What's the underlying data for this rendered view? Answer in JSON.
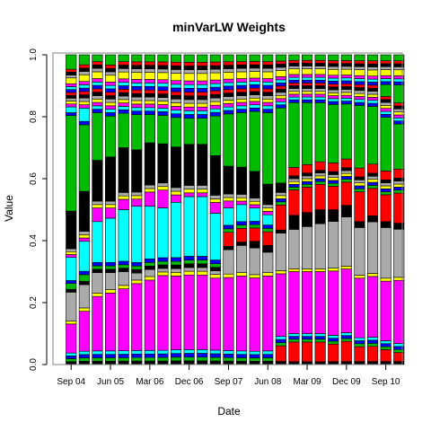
{
  "chart_data": {
    "type": "stacked-bar",
    "title": "minVarLW Weights",
    "xlabel": "Date",
    "ylabel": "Value",
    "ylim": [
      0,
      1
    ],
    "yticks": [
      "0.0",
      "0.2",
      "0.4",
      "0.6",
      "0.8",
      "1.0"
    ],
    "ytick_values": [
      0,
      0.2,
      0.4,
      0.6,
      0.8,
      1.0
    ],
    "xtick_labels": [
      "Sep 04",
      "Jun 05",
      "Mar 06",
      "Dec 06",
      "Sep 07",
      "Jun 08",
      "Mar 09",
      "Dec 09",
      "Sep 10"
    ],
    "xtick_bar_index": [
      0,
      3,
      6,
      9,
      12,
      15,
      18,
      21,
      24
    ],
    "n_bars": 26,
    "colors": [
      "#000000",
      "#ff0000",
      "#00bb00",
      "#0000ff",
      "#00ffff",
      "#ff00ff",
      "#ffff00",
      "#aaaaaa"
    ],
    "color_order": [
      0,
      1,
      2,
      3,
      4,
      5,
      6,
      7,
      0,
      1,
      2,
      3,
      4,
      5,
      6,
      7,
      0,
      1,
      2,
      3,
      4,
      5,
      6,
      7,
      0,
      1,
      2,
      3,
      4,
      5,
      6,
      7,
      0,
      1,
      2
    ],
    "series_values": [
      [
        0.01,
        0.01,
        0.01,
        0.01,
        0.01,
        0.01,
        0.01,
        0.01,
        0.01,
        0.01,
        0.01,
        0.01,
        0.01,
        0.01,
        0.01,
        0.01,
        0.01,
        0.01,
        0.01,
        0.01,
        0.01,
        0.01,
        0.01,
        0.01,
        0.01,
        0.01
      ],
      [
        0,
        0,
        0,
        0,
        0,
        0,
        0,
        0,
        0,
        0,
        0,
        0,
        0,
        0,
        0,
        0,
        0.05,
        0.07,
        0.07,
        0.07,
        0.06,
        0.07,
        0.05,
        0.05,
        0.04,
        0.03
      ],
      [
        0.01,
        0.01,
        0.01,
        0.01,
        0.01,
        0.01,
        0.01,
        0.01,
        0.01,
        0.01,
        0.01,
        0.01,
        0.01,
        0.01,
        0.01,
        0.01,
        0.01,
        0.01,
        0.01,
        0.01,
        0.01,
        0.01,
        0.01,
        0.01,
        0.01,
        0.01
      ],
      [
        0.01,
        0.01,
        0.01,
        0.01,
        0.01,
        0.01,
        0.01,
        0.01,
        0.01,
        0.01,
        0.01,
        0.01,
        0.01,
        0.01,
        0.01,
        0.01,
        0.01,
        0.01,
        0.01,
        0.01,
        0.01,
        0.01,
        0.01,
        0.01,
        0.01,
        0.01
      ],
      [
        0.01,
        0.01,
        0.01,
        0.01,
        0.01,
        0.01,
        0.01,
        0.01,
        0.01,
        0.01,
        0.01,
        0.01,
        0.01,
        0.01,
        0.01,
        0.01,
        0.01,
        0.01,
        0.01,
        0.01,
        0.01,
        0.01,
        0.01,
        0.01,
        0.01,
        0.01
      ],
      [
        0.1,
        0.12,
        0.16,
        0.17,
        0.18,
        0.19,
        0.2,
        0.21,
        0.2,
        0.2,
        0.2,
        0.2,
        0.21,
        0.22,
        0.22,
        0.22,
        0.2,
        0.22,
        0.22,
        0.22,
        0.22,
        0.22,
        0.2,
        0.2,
        0.2,
        0.21
      ],
      [
        0.01,
        0.01,
        0.01,
        0.01,
        0.01,
        0.01,
        0.01,
        0.01,
        0.01,
        0.01,
        0.01,
        0.01,
        0.01,
        0.01,
        0.01,
        0.01,
        0.01,
        0.01,
        0.01,
        0.01,
        0.01,
        0.01,
        0.01,
        0.01,
        0.01,
        0.01
      ],
      [
        0.1,
        0.07,
        0.06,
        0.05,
        0.04,
        0.02,
        0.02,
        0.01,
        0.01,
        0.01,
        0.01,
        0.01,
        0.07,
        0.08,
        0.08,
        0.06,
        0.12,
        0.14,
        0.15,
        0.16,
        0.16,
        0.17,
        0.16,
        0.17,
        0.17,
        0.16
      ],
      [
        0.01,
        0.01,
        0.01,
        0.01,
        0.01,
        0.01,
        0.01,
        0.01,
        0.01,
        0.01,
        0.01,
        0.01,
        0.01,
        0.01,
        0.02,
        0.02,
        0.01,
        0.05,
        0.05,
        0.05,
        0.04,
        0.04,
        0.02,
        0.02,
        0.02,
        0.02
      ],
      [
        0,
        0,
        0,
        0,
        0,
        0,
        0,
        0,
        0,
        0,
        0,
        0,
        0.04,
        0.04,
        0.04,
        0.04,
        0.08,
        0.09,
        0.09,
        0.09,
        0.08,
        0.08,
        0.1,
        0.09,
        0.09,
        0.1
      ],
      [
        0.02,
        0.02,
        0.01,
        0.01,
        0.01,
        0.01,
        0.01,
        0.01,
        0.01,
        0.01,
        0.01,
        0.01,
        0.01,
        0.01,
        0.01,
        0.01,
        0.01,
        0.01,
        0.01,
        0.01,
        0.01,
        0.01,
        0.01,
        0.01,
        0.01,
        0.01
      ],
      [
        0.01,
        0.01,
        0.01,
        0.01,
        0.01,
        0.01,
        0.01,
        0.01,
        0.01,
        0.01,
        0.01,
        0.01,
        0.01,
        0.01,
        0.01,
        0.01,
        0.01,
        0.01,
        0.01,
        0.01,
        0.01,
        0.01,
        0.01,
        0.01,
        0.01,
        0.01
      ],
      [
        0.08,
        0.09,
        0.12,
        0.13,
        0.15,
        0.16,
        0.15,
        0.14,
        0.15,
        0.16,
        0.16,
        0.13,
        0.05,
        0.05,
        0.04,
        0.03,
        0,
        0,
        0,
        0,
        0,
        0,
        0,
        0,
        0,
        0
      ],
      [
        0.01,
        0.01,
        0.04,
        0.03,
        0.03,
        0.02,
        0.04,
        0.05,
        0.02,
        0.01,
        0.01,
        0.03,
        0.02,
        0.01,
        0.01,
        0.01,
        0,
        0,
        0,
        0,
        0,
        0,
        0,
        0,
        0,
        0
      ],
      [
        0.01,
        0.01,
        0.01,
        0.01,
        0.01,
        0.01,
        0.01,
        0.01,
        0.01,
        0.01,
        0.01,
        0.01,
        0.01,
        0.01,
        0.01,
        0.01,
        0.01,
        0.01,
        0.01,
        0.01,
        0.01,
        0.01,
        0.01,
        0.01,
        0.01,
        0.01
      ],
      [
        0.01,
        0.01,
        0.01,
        0.01,
        0.01,
        0.01,
        0.01,
        0.01,
        0.01,
        0.01,
        0.01,
        0.01,
        0.01,
        0.01,
        0.01,
        0.01,
        0.01,
        0.01,
        0.01,
        0.01,
        0.01,
        0.01,
        0.01,
        0.01,
        0.01,
        0.01
      ],
      [
        0.13,
        0.12,
        0.12,
        0.13,
        0.13,
        0.12,
        0.12,
        0.11,
        0.11,
        0.11,
        0.11,
        0.11,
        0.08,
        0.08,
        0.08,
        0.06,
        0.03,
        0.01,
        0.01,
        0.01,
        0.01,
        0.01,
        0.01,
        0.01,
        0.01,
        0.01
      ],
      [
        0,
        0,
        0,
        0,
        0,
        0,
        0,
        0,
        0,
        0,
        0,
        0,
        0,
        0,
        0,
        0,
        0,
        0.03,
        0.03,
        0.03,
        0.03,
        0.03,
        0.03,
        0.03,
        0.03,
        0.03
      ],
      [
        0.33,
        0.2,
        0.14,
        0.12,
        0.1,
        0.1,
        0.08,
        0.08,
        0.08,
        0.07,
        0.07,
        0.11,
        0.15,
        0.16,
        0.18,
        0.21,
        0.24,
        0.23,
        0.22,
        0.21,
        0.2,
        0.19,
        0.21,
        0.19,
        0.18,
        0.15
      ],
      [
        0.01,
        0.01,
        0.01,
        0.01,
        0.01,
        0.01,
        0.01,
        0.01,
        0.01,
        0.01,
        0.01,
        0.01,
        0.01,
        0.01,
        0.01,
        0.01,
        0.01,
        0.01,
        0.01,
        0.01,
        0.01,
        0.01,
        0.01,
        0.01,
        0.01,
        0.01
      ],
      [
        0.02,
        0.04,
        0.01,
        0.01,
        0.01,
        0.01,
        0.01,
        0.01,
        0.01,
        0.01,
        0.01,
        0.01,
        0.01,
        0.01,
        0.01,
        0.01,
        0.01,
        0.01,
        0.01,
        0.01,
        0.01,
        0.01,
        0.01,
        0.01,
        0.01,
        0.01
      ],
      [
        0.01,
        0.01,
        0.01,
        0.01,
        0.01,
        0.01,
        0.01,
        0.01,
        0.01,
        0.01,
        0.01,
        0.01,
        0.01,
        0.01,
        0.01,
        0.01,
        0.01,
        0.01,
        0.01,
        0.01,
        0.01,
        0.01,
        0.01,
        0.01,
        0.01,
        0.01
      ],
      [
        0.01,
        0.01,
        0.01,
        0.01,
        0.01,
        0.01,
        0.01,
        0.01,
        0.01,
        0.01,
        0.01,
        0.01,
        0.01,
        0.01,
        0.01,
        0.01,
        0.01,
        0.01,
        0.01,
        0.01,
        0.01,
        0.01,
        0.01,
        0.01,
        0.01,
        0.01
      ],
      [
        0.01,
        0.01,
        0.01,
        0.01,
        0.01,
        0.01,
        0.01,
        0.01,
        0.01,
        0.01,
        0.01,
        0.01,
        0.01,
        0.01,
        0.01,
        0.01,
        0.01,
        0.01,
        0.01,
        0.01,
        0.01,
        0.01,
        0.01,
        0.01,
        0.01,
        0.01
      ],
      [
        0.01,
        0.01,
        0.01,
        0.01,
        0.01,
        0.01,
        0.01,
        0.01,
        0.01,
        0.01,
        0.01,
        0.01,
        0.01,
        0.01,
        0.01,
        0.01,
        0.01,
        0.01,
        0.01,
        0.01,
        0.01,
        0.01,
        0.01,
        0.01,
        0.01,
        0.01
      ],
      [
        0.01,
        0.01,
        0.01,
        0.01,
        0.01,
        0.01,
        0.01,
        0.01,
        0.01,
        0.01,
        0.01,
        0.01,
        0.01,
        0.01,
        0.01,
        0.01,
        0.01,
        0.01,
        0.01,
        0.01,
        0.01,
        0.01,
        0.01,
        0.01,
        0.01,
        0.01
      ],
      [
        0,
        0,
        0,
        0,
        0,
        0,
        0,
        0,
        0,
        0,
        0,
        0,
        0,
        0,
        0,
        0,
        0,
        0,
        0,
        0,
        0,
        0,
        0,
        0,
        0.04,
        0.06
      ],
      [
        0.01,
        0.01,
        0.01,
        0.01,
        0.01,
        0.01,
        0.01,
        0.01,
        0.01,
        0.01,
        0.01,
        0.01,
        0.01,
        0.01,
        0.01,
        0.01,
        0.01,
        0.01,
        0.01,
        0.01,
        0.01,
        0.01,
        0.01,
        0.01,
        0.01,
        0.01
      ],
      [
        0.01,
        0.01,
        0.01,
        0.01,
        0.01,
        0.01,
        0.01,
        0.01,
        0.01,
        0.01,
        0.01,
        0.01,
        0.01,
        0.01,
        0.01,
        0.01,
        0.01,
        0.01,
        0.01,
        0.01,
        0.01,
        0.01,
        0.01,
        0.01,
        0.01,
        0.01
      ],
      [
        0.01,
        0.01,
        0.01,
        0.01,
        0.01,
        0.01,
        0.01,
        0.01,
        0.01,
        0.01,
        0.01,
        0.01,
        0.01,
        0.01,
        0.01,
        0.01,
        0.01,
        0.01,
        0.01,
        0.01,
        0.01,
        0.01,
        0.01,
        0.01,
        0.01,
        0.01
      ],
      [
        0.02,
        0.02,
        0.02,
        0.02,
        0.02,
        0.02,
        0.02,
        0.02,
        0.02,
        0.02,
        0.02,
        0.02,
        0.02,
        0.02,
        0.02,
        0.02,
        0.02,
        0.02,
        0.02,
        0.02,
        0.02,
        0.02,
        0.02,
        0.02,
        0.02,
        0.02
      ],
      [
        0.01,
        0.01,
        0.01,
        0.01,
        0.01,
        0.01,
        0.01,
        0.01,
        0.01,
        0.01,
        0.01,
        0.01,
        0.01,
        0.01,
        0.01,
        0.01,
        0.01,
        0.01,
        0.01,
        0.01,
        0.01,
        0.01,
        0.01,
        0.01,
        0.01,
        0.01
      ],
      [
        0.01,
        0.01,
        0.01,
        0.01,
        0.01,
        0.01,
        0.01,
        0.01,
        0.01,
        0.01,
        0.01,
        0.01,
        0.01,
        0.01,
        0.01,
        0.01,
        0.01,
        0.01,
        0.01,
        0.01,
        0.01,
        0.01,
        0.01,
        0.01,
        0.01,
        0.01
      ],
      [
        0.01,
        0.01,
        0.01,
        0.01,
        0.01,
        0.01,
        0.01,
        0.01,
        0.01,
        0.01,
        0.01,
        0.01,
        0.01,
        0.01,
        0.01,
        0.01,
        0.01,
        0.01,
        0.01,
        0.01,
        0.01,
        0.01,
        0.01,
        0.01,
        0.01,
        0.01
      ],
      [
        0.05,
        0.03,
        0.02,
        0.03,
        0.02,
        0.02,
        0.02,
        0.02,
        0.02,
        0.02,
        0.02,
        0.02,
        0.02,
        0.02,
        0.02,
        0.02,
        0.02,
        0.02,
        0.02,
        0.02,
        0.02,
        0.02,
        0.02,
        0.02,
        0.02,
        0.02
      ]
    ]
  }
}
